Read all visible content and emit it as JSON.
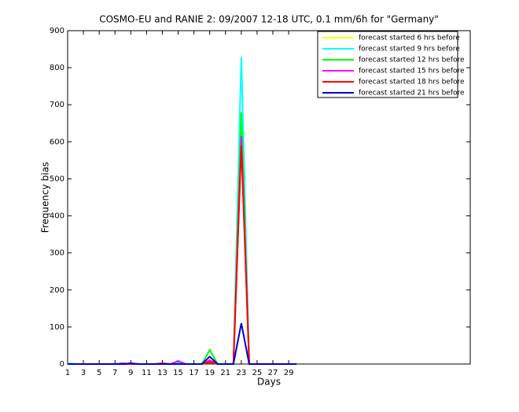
{
  "chart_data": {
    "type": "line",
    "title": "COSMO-EU and RANIE 2: 09/2007 12-18 UTC, 0.1 mm/6h for \"Germany\"",
    "x_label": "Days",
    "y_label": "Frequency bias",
    "x": [
      1,
      2,
      3,
      4,
      5,
      6,
      7,
      8,
      9,
      10,
      11,
      12,
      13,
      14,
      15,
      16,
      17,
      18,
      19,
      20,
      21,
      22,
      23,
      24,
      25,
      26,
      27,
      28,
      29,
      30
    ],
    "xlim": [
      1,
      52
    ],
    "xticks": [
      1,
      3,
      5,
      7,
      9,
      11,
      13,
      15,
      17,
      19,
      21,
      23,
      25,
      27,
      29
    ],
    "ylim": [
      0,
      900
    ],
    "yticks": [
      0,
      100,
      200,
      300,
      400,
      500,
      600,
      700,
      800,
      900
    ],
    "legend": "top-right",
    "series": [
      {
        "name": "forecast started 6 hrs before",
        "color": "#ffff00",
        "values": [
          0,
          0,
          0,
          0,
          0,
          0,
          0,
          0,
          0,
          0,
          0,
          0,
          0,
          0,
          0,
          0,
          0,
          0,
          5,
          0,
          0,
          0,
          600,
          0,
          0,
          0,
          0,
          0,
          0,
          0
        ]
      },
      {
        "name": "forecast started 9 hrs before",
        "color": "#00ffff",
        "values": [
          2,
          0,
          0,
          0,
          0,
          0,
          0,
          0,
          0,
          0,
          0,
          0,
          0,
          0,
          3,
          0,
          0,
          0,
          10,
          0,
          0,
          0,
          830,
          0,
          0,
          0,
          0,
          0,
          0,
          0
        ]
      },
      {
        "name": "forecast started 12 hrs before",
        "color": "#00ff00",
        "values": [
          0,
          0,
          0,
          0,
          0,
          0,
          0,
          0,
          0,
          0,
          0,
          0,
          0,
          0,
          0,
          0,
          0,
          0,
          38,
          0,
          0,
          0,
          680,
          0,
          0,
          0,
          0,
          0,
          0,
          0
        ]
      },
      {
        "name": "forecast started 15 hrs before",
        "color": "#ff00ff",
        "values": [
          0,
          0,
          0,
          0,
          0,
          0,
          0,
          2,
          0,
          0,
          0,
          0,
          0,
          0,
          8,
          0,
          0,
          0,
          10,
          0,
          0,
          0,
          615,
          0,
          0,
          0,
          0,
          0,
          0,
          0
        ]
      },
      {
        "name": "forecast started 18 hrs before",
        "color": "#ff0000",
        "values": [
          0,
          0,
          0,
          0,
          0,
          0,
          0,
          0,
          0,
          0,
          0,
          0,
          2,
          0,
          0,
          0,
          0,
          0,
          5,
          0,
          0,
          0,
          590,
          0,
          0,
          0,
          0,
          0,
          0,
          0
        ]
      },
      {
        "name": "forecast started 21 hrs before",
        "color": "#0000cc",
        "values": [
          0,
          0,
          0,
          0,
          0,
          0,
          0,
          0,
          2,
          0,
          0,
          0,
          0,
          0,
          0,
          0,
          0,
          0,
          20,
          0,
          0,
          0,
          110,
          0,
          0,
          0,
          0,
          0,
          0,
          0
        ]
      }
    ]
  }
}
